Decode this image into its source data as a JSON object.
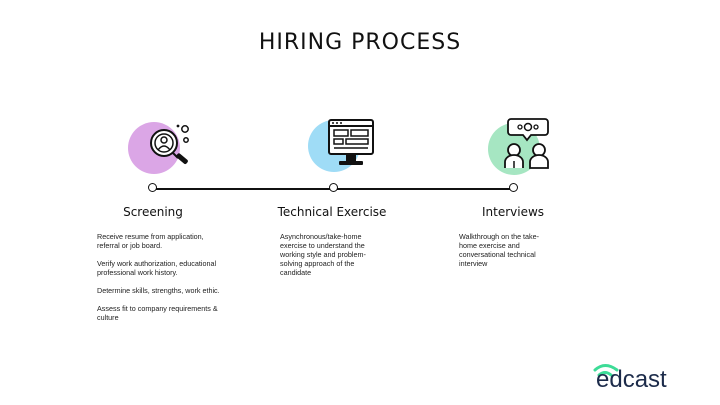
{
  "title": "HIRING PROCESS",
  "colors": {
    "screening_blob": "#dba6e6",
    "technical_blob": "#9fdcf6",
    "interviews_blob": "#a6e6c2",
    "line": "#111111",
    "logo_wave": "#3ddc97",
    "logo_text": "#1c2b4a"
  },
  "steps": [
    {
      "title": "Screening",
      "icon": "candidate-search-icon",
      "description": [
        "Receive resume from application, referral or job board.",
        "Verify work authorization, educational professional work history.",
        "Determine skills, strengths, work ethic.",
        "Assess fit to company requirements & culture"
      ]
    },
    {
      "title": "Technical Exercise",
      "icon": "computer-monitor-icon",
      "description": [
        "Asynchronous/take-home exercise to understand the working style and problem-solving approach of the candidate"
      ]
    },
    {
      "title": "Interviews",
      "icon": "interview-people-icon",
      "description": [
        "Walkthrough on the take-home exercise and conversational technical interview"
      ]
    }
  ],
  "logo": {
    "text": "edcast"
  }
}
